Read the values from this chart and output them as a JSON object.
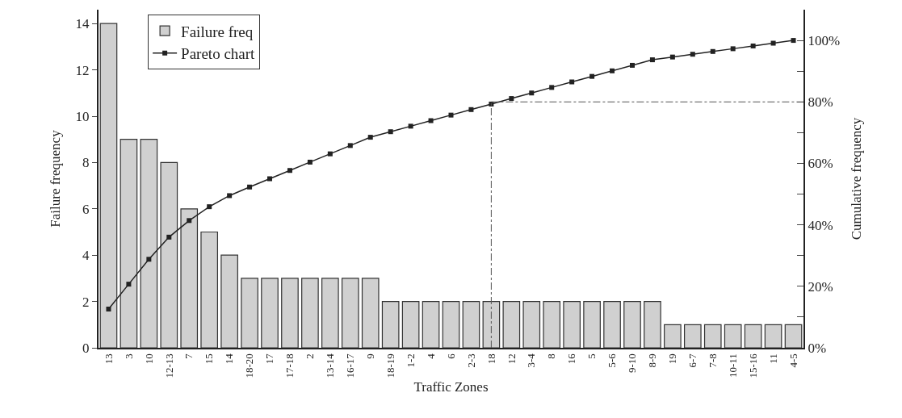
{
  "chart_data": {
    "type": "bar",
    "xlabel": "Traffic Zones",
    "ylabel": "Failure frequency",
    "y2label": "Cumulative frequency",
    "categories": [
      "13",
      "3",
      "10",
      "12-13",
      "7",
      "15",
      "14",
      "18-20",
      "17",
      "17-18",
      "2",
      "13-14",
      "16-17",
      "9",
      "18-19",
      "1-2",
      "4",
      "6",
      "2-3",
      "18",
      "12",
      "3-4",
      "8",
      "16",
      "5",
      "5-6",
      "9-10",
      "8-9",
      "19",
      "6-7",
      "7-8",
      "10-11",
      "15-16",
      "11",
      "4-5"
    ],
    "series": [
      {
        "name": "Failure freq",
        "color": "#d0d0d0",
        "values": [
          14,
          9,
          9,
          8,
          6,
          5,
          4,
          3,
          3,
          3,
          3,
          3,
          3,
          3,
          2,
          2,
          2,
          2,
          2,
          2,
          2,
          2,
          2,
          2,
          2,
          2,
          2,
          2,
          1,
          1,
          1,
          1,
          1,
          1,
          1
        ]
      },
      {
        "name": "Pareto chart",
        "type": "line",
        "axis": "y2",
        "color": "#222222",
        "marker": "square",
        "line_style": "solid",
        "values": [
          12.6,
          20.7,
          28.8,
          36.0,
          41.4,
          45.9,
          49.5,
          52.3,
          55.0,
          57.7,
          60.4,
          63.1,
          65.8,
          68.5,
          70.3,
          72.1,
          73.9,
          75.7,
          77.5,
          79.3,
          81.1,
          82.9,
          84.7,
          86.5,
          88.3,
          90.1,
          91.9,
          93.7,
          94.6,
          95.5,
          96.4,
          97.3,
          98.2,
          99.1,
          100
        ]
      }
    ],
    "ylim": [
      0,
      14.6
    ],
    "yticks": [
      0,
      2,
      4,
      6,
      8,
      10,
      12,
      14
    ],
    "y2lim": [
      0,
      110
    ],
    "y2ticks": [
      {
        "value": 0,
        "label": "0%"
      },
      {
        "value": 10,
        "label": null
      },
      {
        "value": 20,
        "label": "20%"
      },
      {
        "value": 30,
        "label": null
      },
      {
        "value": 40,
        "label": "40%"
      },
      {
        "value": 50,
        "label": null
      },
      {
        "value": 60,
        "label": "60%"
      },
      {
        "value": 70,
        "label": null
      },
      {
        "value": 80,
        "label": "80%"
      },
      {
        "value": 90,
        "label": null
      },
      {
        "value": 100,
        "label": "100%"
      }
    ],
    "ref_lines": [
      {
        "axis": "x",
        "value": "18",
        "color": "#555555",
        "line_style": "dashdot"
      },
      {
        "axis": "y2",
        "value": 80,
        "color": "#555555",
        "line_style": "dashdot"
      }
    ],
    "legend": "top left"
  }
}
